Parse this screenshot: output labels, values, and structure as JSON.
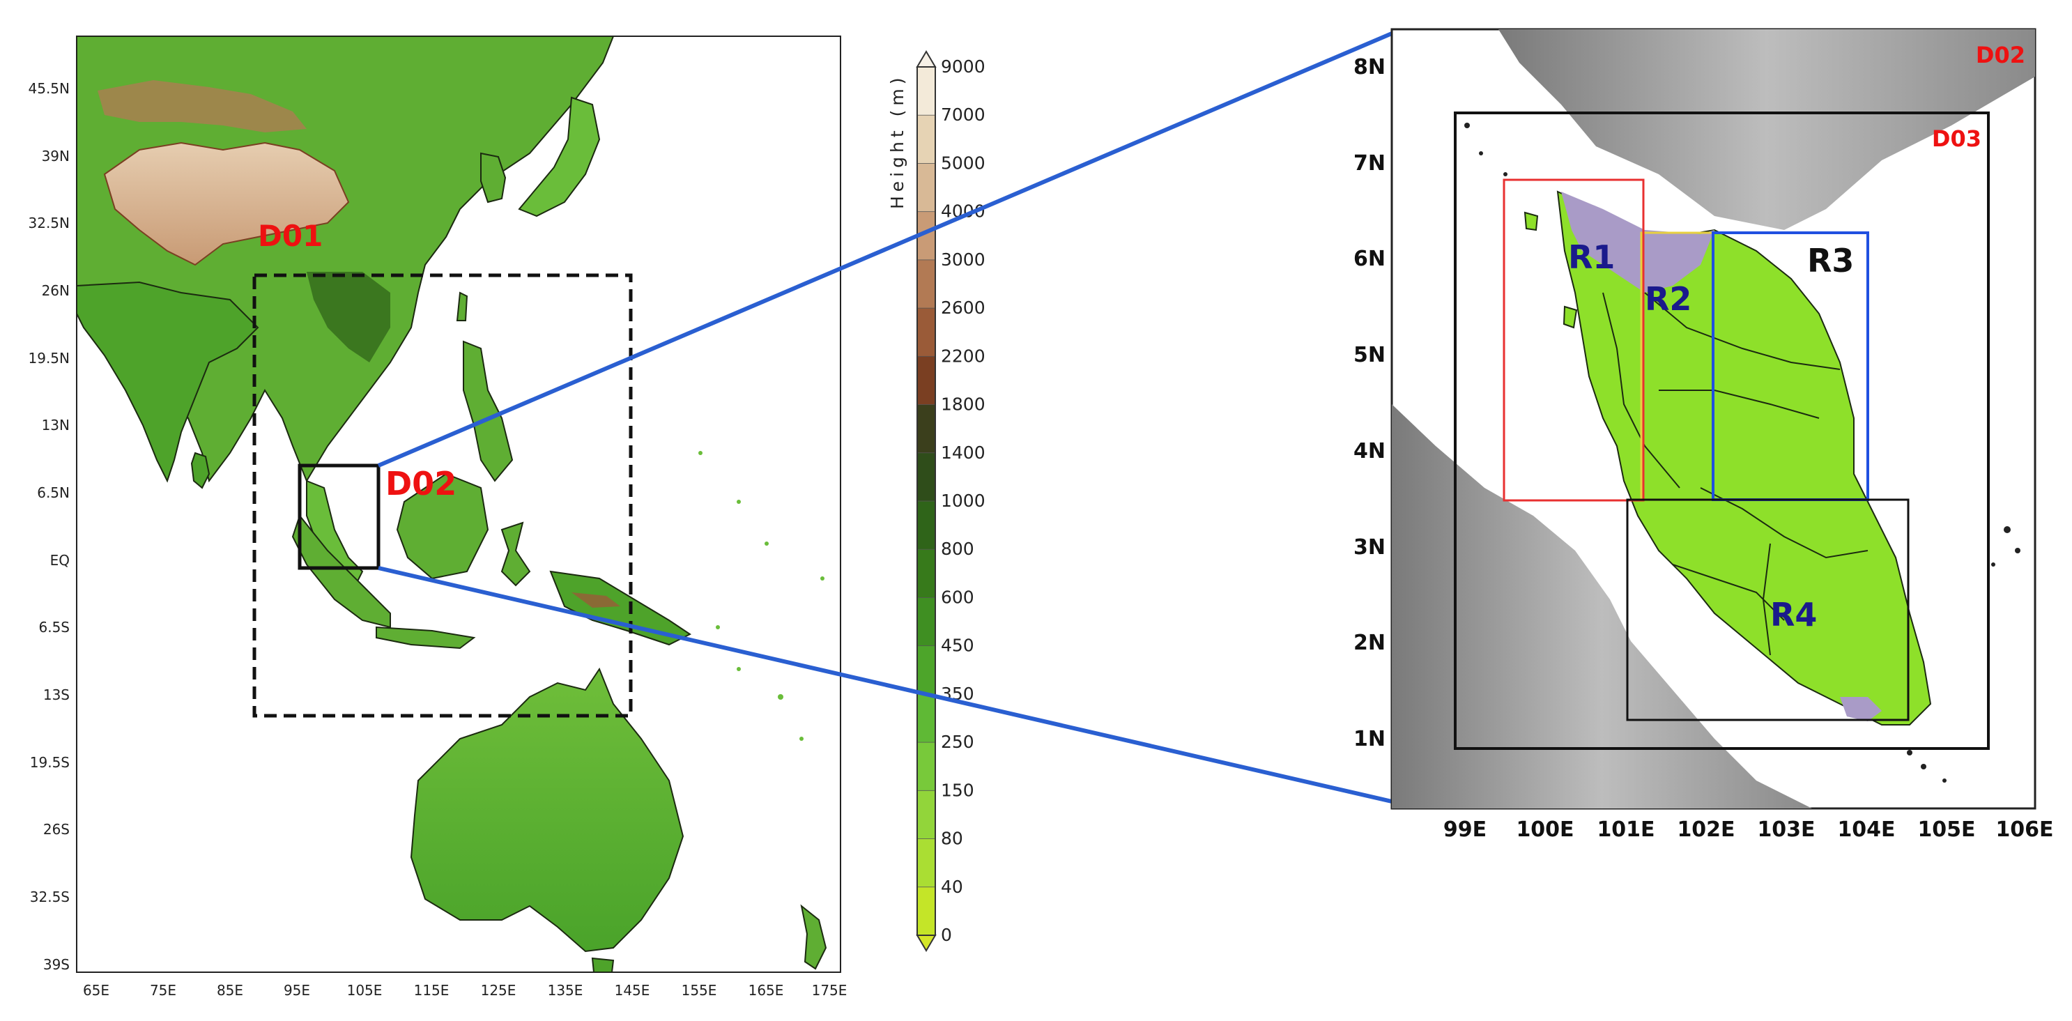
{
  "left_map": {
    "lat_labels": [
      "45.5N",
      "39N",
      "32.5N",
      "26N",
      "19.5N",
      "13N",
      "6.5N",
      "EQ",
      "6.5S",
      "13S",
      "19.5S",
      "26S",
      "32.5S",
      "39S"
    ],
    "lon_labels": [
      "65E",
      "75E",
      "85E",
      "95E",
      "105E",
      "115E",
      "125E",
      "135E",
      "145E",
      "155E",
      "165E",
      "175E"
    ],
    "domain_labels": {
      "d01": "D01",
      "d02": "D02"
    }
  },
  "colorbar": {
    "title": "Height (m)",
    "levels": [
      "9000",
      "7000",
      "5000",
      "4000",
      "3000",
      "2600",
      "2200",
      "1800",
      "1400",
      "1000",
      "800",
      "600",
      "450",
      "350",
      "250",
      "150",
      "80",
      "40",
      "0"
    ],
    "colors": [
      "#f3ead9",
      "#e6d3b4",
      "#d8b996",
      "#c99b76",
      "#b27a54",
      "#9a5b38",
      "#7a3f22",
      "#3b3f1c",
      "#2f4d1a",
      "#2f6419",
      "#377a1b",
      "#3f8f22",
      "#4da52a",
      "#5fb935",
      "#78c93a",
      "#92d53a",
      "#aade33",
      "#c4e528"
    ]
  },
  "right_map": {
    "lat_labels": [
      "8N",
      "7N",
      "6N",
      "5N",
      "4N",
      "3N",
      "2N",
      "1N"
    ],
    "lon_labels": [
      "99E",
      "100E",
      "101E",
      "102E",
      "103E",
      "104E",
      "105E",
      "106E"
    ],
    "domain_labels": {
      "d02": "D02",
      "d03": "D03"
    },
    "region_labels": {
      "r1": "R1",
      "r2": "R2",
      "r3": "R3",
      "r4": "R4"
    }
  }
}
